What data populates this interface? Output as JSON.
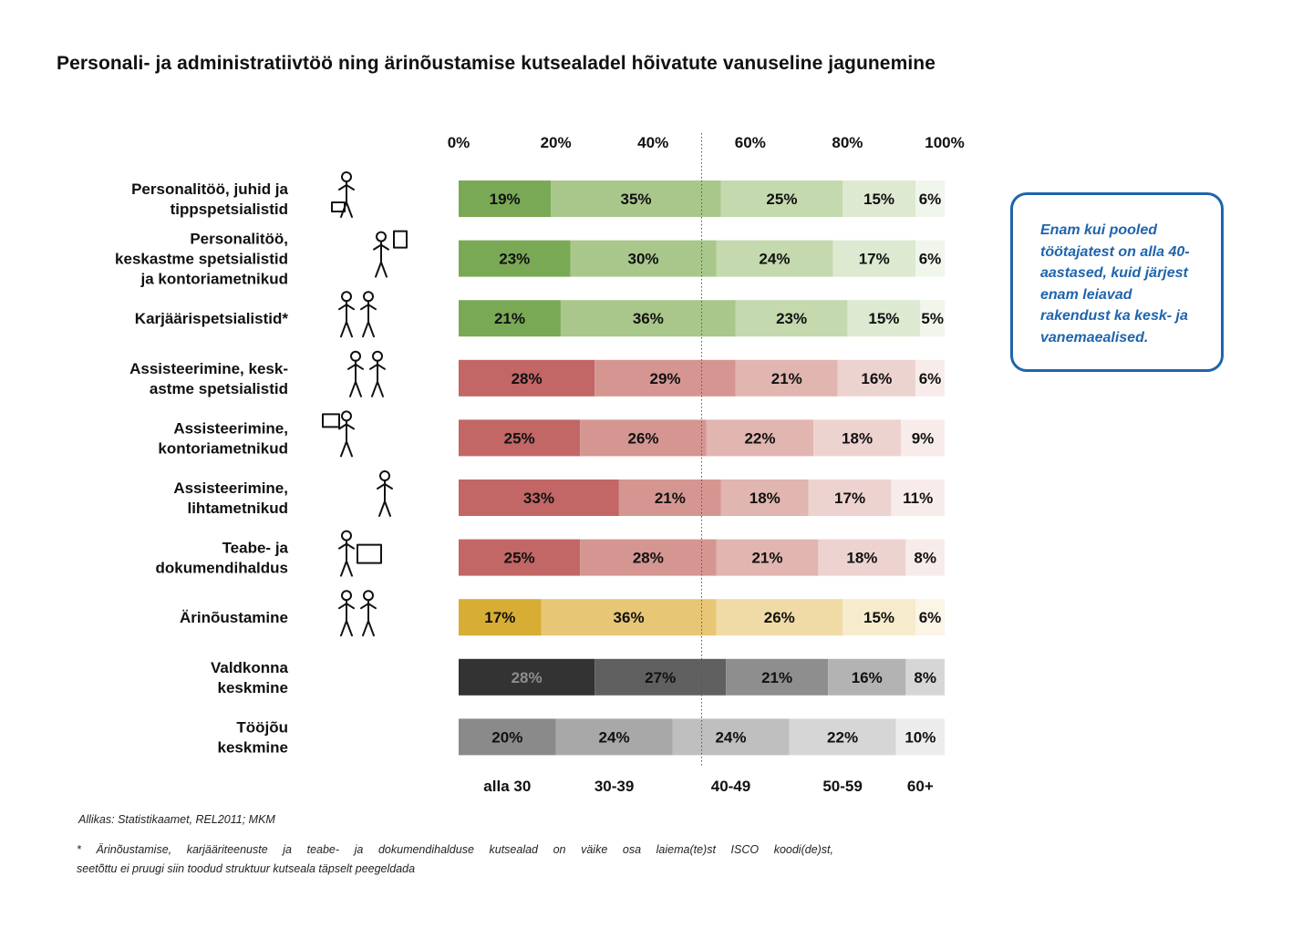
{
  "title": "Personali- ja administratiivtöö ning ärinõustamise kutsealadel hõivatute vanuseline jagunemine",
  "callout": "Enam kui pooled töötajatest on alla 40-aastased, kuid järjest enam leiavad rakendust ka kesk- ja vanemaealised.",
  "source": "Allikas: Statistikaamet, REL2011; MKM",
  "note_line1": "* Ärinõustamise, karjääriteenuste ja teabe- ja dokumendihalduse kutsealad on väike osa laiema(te)st ISCO koodi(de)st,",
  "note_line2": "seetõttu ei pruugi siin toodud struktuur kutseala täpselt peegeldada",
  "chart_data": {
    "type": "bar",
    "orientation": "horizontal",
    "stacked": true,
    "xlim": [
      0,
      100
    ],
    "x_ticks": [
      "0%",
      "20%",
      "40%",
      "60%",
      "80%",
      "100%"
    ],
    "age_groups": [
      "alla 30",
      "30-39",
      "40-49",
      "50-59",
      "60+"
    ],
    "reference_line": 50,
    "categories": [
      {
        "label": [
          "Personalitöö, juhid ja",
          "tippspetsialistid"
        ],
        "icon": "manager-with-briefcase-icon",
        "palette": "green",
        "values": [
          19,
          35,
          25,
          15,
          6
        ]
      },
      {
        "label": [
          "Personalitöö,",
          "keskastme spetsialistid",
          "ja kontoriametnikud"
        ],
        "icon": "presenter-with-easel-icon",
        "palette": "green",
        "values": [
          23,
          30,
          24,
          17,
          6
        ]
      },
      {
        "label": [
          "Karjäärispetsialistid*"
        ],
        "icon": "two-people-icon",
        "palette": "green",
        "values": [
          21,
          36,
          23,
          15,
          5
        ]
      },
      {
        "label": [
          "Assisteerimine, kesk-",
          "astme spetsialistid"
        ],
        "icon": "assistant-pointing-icon",
        "palette": "red",
        "values": [
          28,
          29,
          21,
          16,
          6
        ]
      },
      {
        "label": [
          "Assisteerimine,",
          "kontoriametnikud"
        ],
        "icon": "office-printer-person-icon",
        "palette": "red",
        "values": [
          25,
          26,
          22,
          18,
          9
        ]
      },
      {
        "label": [
          "Assisteerimine,",
          "lihtametnikud"
        ],
        "icon": "clerk-woman-icon",
        "palette": "red",
        "values": [
          33,
          21,
          18,
          17,
          11
        ]
      },
      {
        "label": [
          "Teabe- ja",
          "dokumendihaldus"
        ],
        "icon": "secure-computer-person-icon",
        "palette": "red",
        "values": [
          25,
          28,
          21,
          18,
          8
        ]
      },
      {
        "label": [
          "Ärinõustamine"
        ],
        "icon": "business-consulting-icon",
        "palette": "yellow",
        "values": [
          17,
          36,
          26,
          15,
          6
        ]
      },
      {
        "label": [
          "Valdkonna",
          "keskmine"
        ],
        "icon": "",
        "palette": "dark",
        "values": [
          28,
          27,
          21,
          16,
          8
        ]
      },
      {
        "label": [
          "Tööjõu",
          "keskmine"
        ],
        "icon": "",
        "palette": "gray",
        "values": [
          20,
          24,
          24,
          22,
          10
        ]
      }
    ],
    "palettes": {
      "green": [
        "#7aa956",
        "#a9c78b",
        "#c4d9ae",
        "#dde9d0",
        "#f1f6ec"
      ],
      "red": [
        "#c26666",
        "#d59691",
        "#e1b5b0",
        "#edd3d0",
        "#f8ecea"
      ],
      "yellow": [
        "#d8ad34",
        "#e7c775",
        "#f0dba6",
        "#f6ebcc",
        "#fbf5e6"
      ],
      "dark": [
        "#333333",
        "#606060",
        "#8e8e8e",
        "#b3b3b3",
        "#d6d6d6"
      ],
      "gray": [
        "#8a8a8a",
        "#a8a8a8",
        "#bfbfbf",
        "#d6d6d6",
        "#ececec"
      ]
    }
  }
}
